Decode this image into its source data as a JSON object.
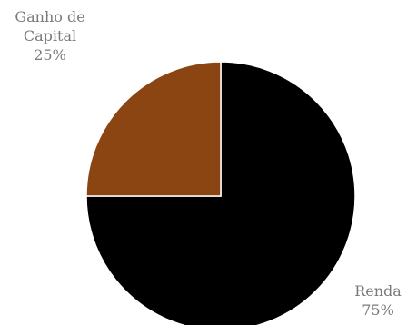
{
  "chart_data": {
    "type": "pie",
    "title": "",
    "slices": [
      {
        "label_lines": [
          "Renda"
        ],
        "percent_label": "75%",
        "value": 75,
        "color": "#000000"
      },
      {
        "label_lines": [
          "Ganho de",
          "Capital"
        ],
        "percent_label": "25%",
        "value": 25,
        "color": "#8b4513"
      }
    ],
    "legend": "none",
    "start_angle_deg": 0,
    "direction": "clockwise",
    "label_color": "#7a7a7a"
  }
}
